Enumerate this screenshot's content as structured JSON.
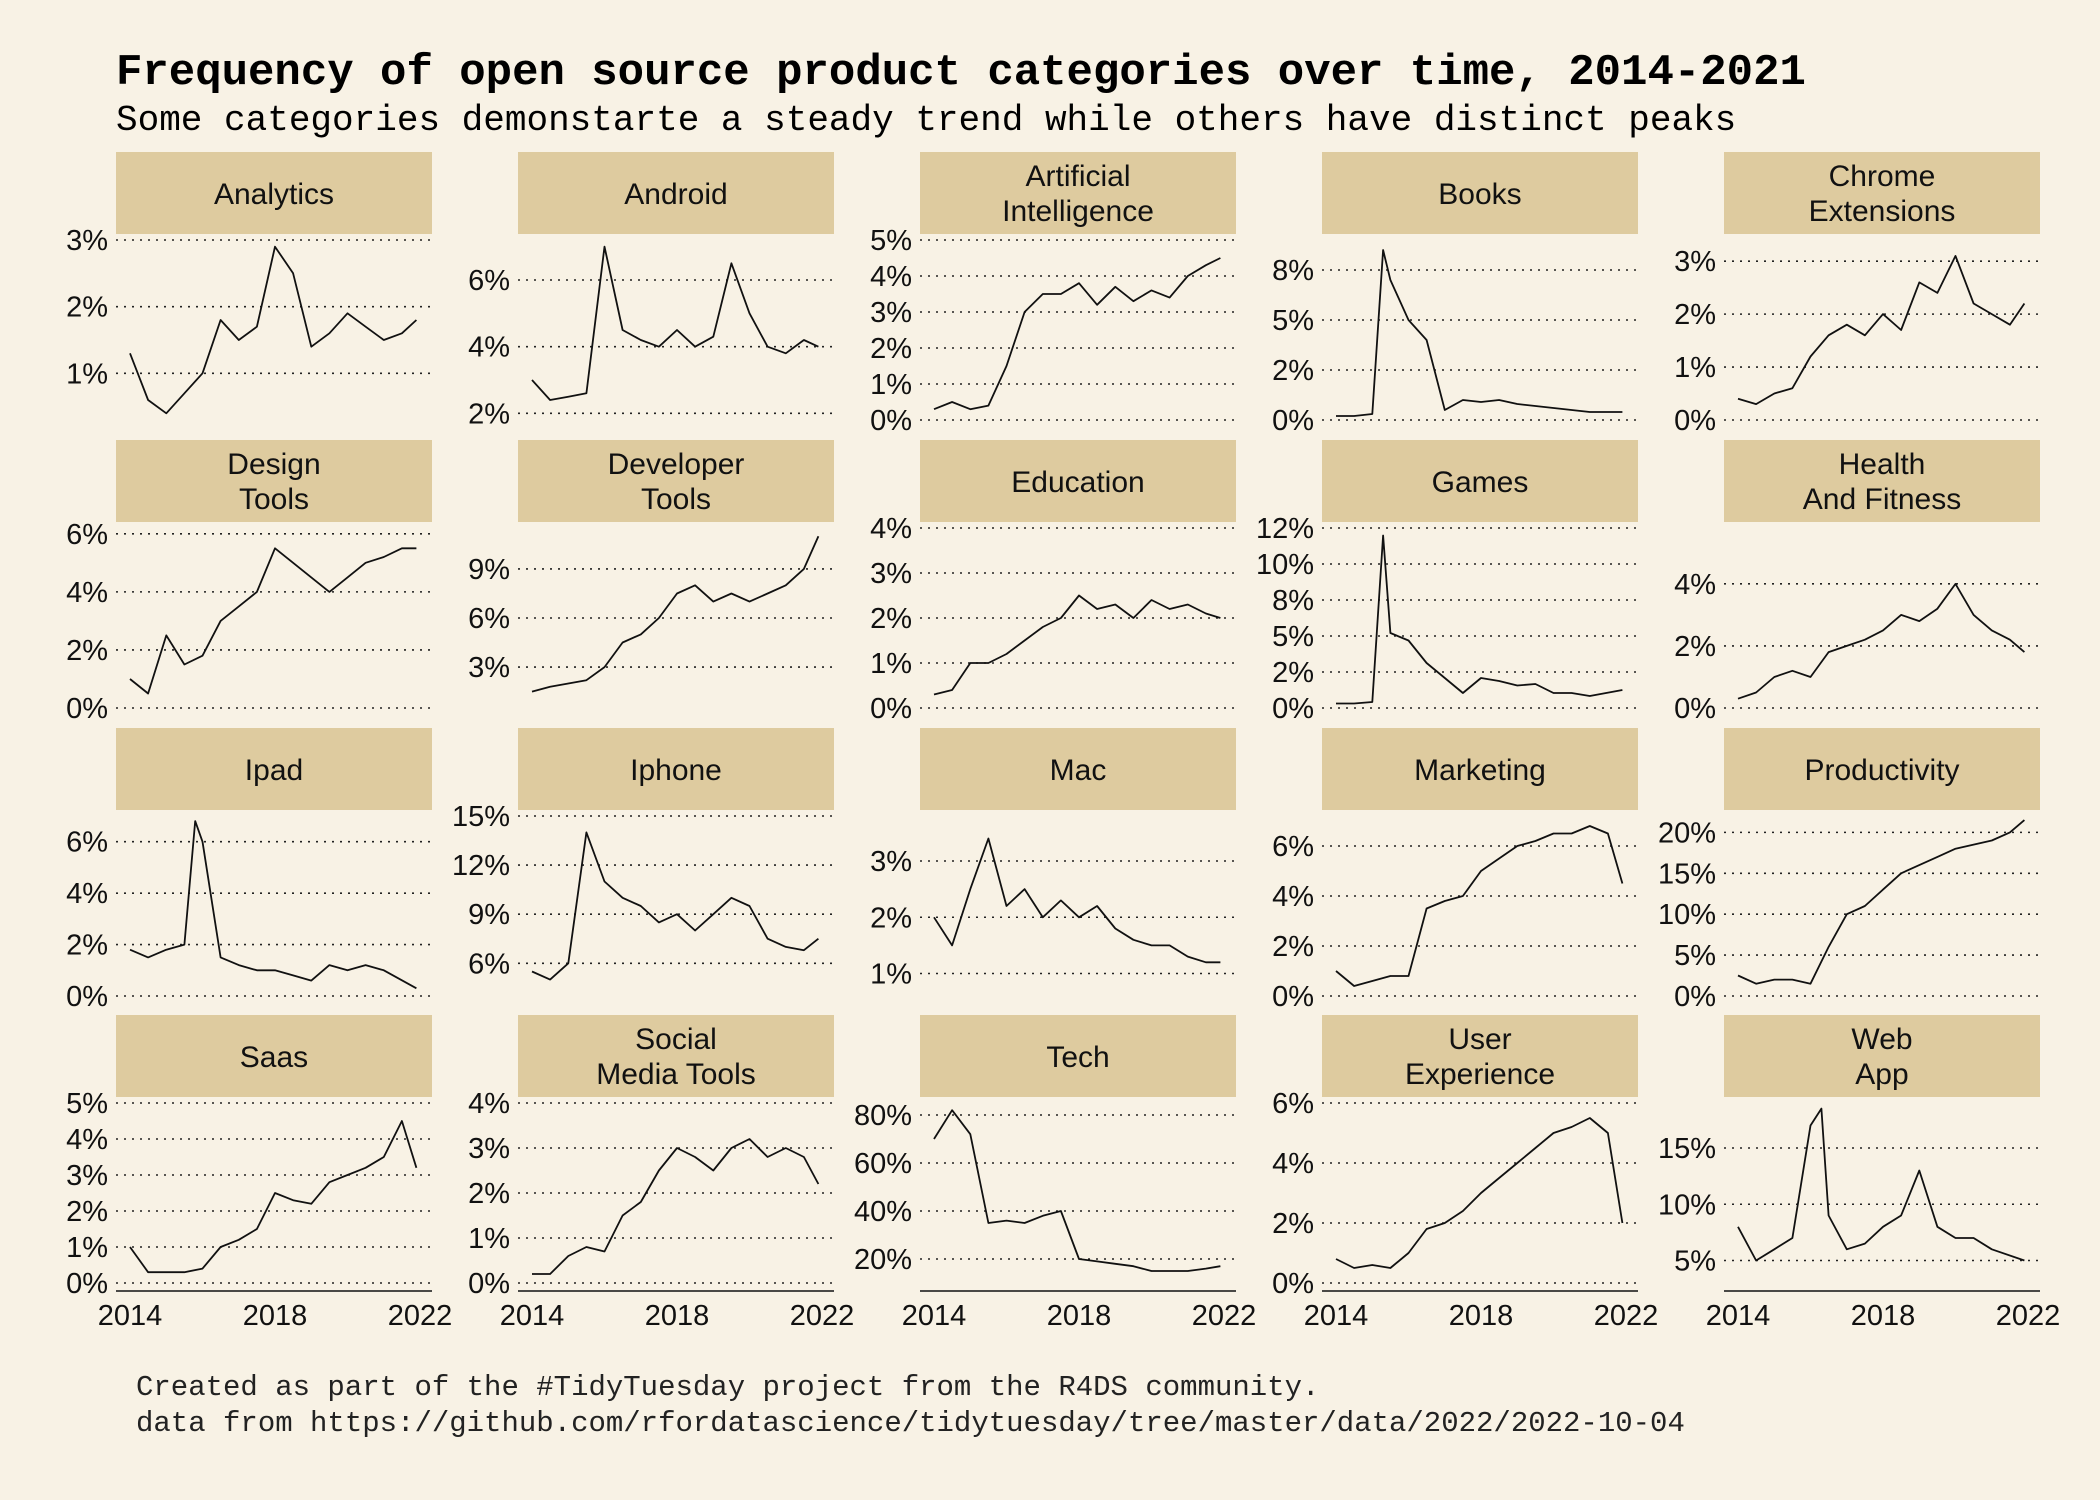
{
  "title": "Frequency of open source product categories over time, 2014-2021",
  "subtitle": "Some categories demonstarte a steady trend while others have distinct peaks",
  "caption_line1": "Created as part of the #TidyTuesday project from the R4DS community.",
  "caption_line2": "data from https://github.com/rfordatascience/tidytuesday/tree/master/data/2022/2022-10-04",
  "chart_data": {
    "type": "line",
    "facets": "wrap 5 columns, free y scales",
    "xlim": [
      2014,
      2022
    ],
    "x_ticks": [
      "2014",
      "2018",
      "2022"
    ],
    "grid": "horizontal dotted",
    "panels": [
      {
        "label": "Analytics",
        "ylim": [
          0.3,
          3.0
        ],
        "y_ticks": [
          "1%",
          "2%",
          "3%"
        ],
        "y_tick_values": [
          1,
          2,
          3
        ],
        "x": [
          2014.0,
          2014.5,
          2015.0,
          2015.5,
          2016.0,
          2016.5,
          2017.0,
          2017.5,
          2018.0,
          2018.5,
          2019.0,
          2019.5,
          2020.0,
          2020.5,
          2021.0,
          2021.5,
          2021.9
        ],
        "y": [
          1.3,
          0.6,
          0.4,
          0.7,
          1.0,
          1.8,
          1.5,
          1.7,
          2.9,
          2.5,
          1.4,
          1.6,
          1.9,
          1.7,
          1.5,
          1.6,
          1.8
        ]
      },
      {
        "label": "Android",
        "ylim": [
          1.8,
          7.2
        ],
        "y_ticks": [
          "2%",
          "4%",
          "6%"
        ],
        "y_tick_values": [
          2,
          4,
          6
        ],
        "x": [
          2014.0,
          2014.5,
          2015.0,
          2015.5,
          2016.0,
          2016.5,
          2017.0,
          2017.5,
          2018.0,
          2018.5,
          2019.0,
          2019.5,
          2020.0,
          2020.5,
          2021.0,
          2021.5,
          2021.9
        ],
        "y": [
          3.0,
          2.4,
          2.5,
          2.6,
          7.0,
          4.5,
          4.2,
          4.0,
          4.5,
          4.0,
          4.3,
          6.5,
          5.0,
          4.0,
          3.8,
          4.2,
          4.0
        ]
      },
      {
        "label": "Artificial\nIntelligence",
        "ylim": [
          0,
          5.0
        ],
        "y_ticks": [
          "0%",
          "1%",
          "2%",
          "3%",
          "4%",
          "5%"
        ],
        "y_tick_values": [
          0,
          1,
          2,
          3,
          4,
          5
        ],
        "x": [
          2014.0,
          2014.5,
          2015.0,
          2015.5,
          2016.0,
          2016.5,
          2017.0,
          2017.5,
          2018.0,
          2018.5,
          2019.0,
          2019.5,
          2020.0,
          2020.5,
          2021.0,
          2021.5,
          2021.9
        ],
        "y": [
          0.3,
          0.5,
          0.3,
          0.4,
          1.5,
          3.0,
          3.5,
          3.5,
          3.8,
          3.2,
          3.7,
          3.3,
          3.6,
          3.4,
          4.0,
          4.3,
          4.5
        ]
      },
      {
        "label": "Books",
        "ylim": [
          0,
          9.0
        ],
        "y_ticks": [
          "0%",
          "2%",
          "5%",
          "8%"
        ],
        "y_tick_values": [
          0,
          2.5,
          5,
          7.5
        ],
        "x": [
          2014.0,
          2014.5,
          2015.0,
          2015.3,
          2015.5,
          2016.0,
          2016.5,
          2017.0,
          2017.5,
          2018.0,
          2018.5,
          2019.0,
          2019.5,
          2020.0,
          2020.5,
          2021.0,
          2021.9
        ],
        "y": [
          0.2,
          0.2,
          0.3,
          8.5,
          7.0,
          5.0,
          4.0,
          0.5,
          1.0,
          0.9,
          1.0,
          0.8,
          0.7,
          0.6,
          0.5,
          0.4,
          0.4
        ]
      },
      {
        "label": "Chrome\nExtensions",
        "ylim": [
          0,
          3.4
        ],
        "y_ticks": [
          "0%",
          "1%",
          "2%",
          "3%"
        ],
        "y_tick_values": [
          0,
          1,
          2,
          3
        ],
        "x": [
          2014.0,
          2014.5,
          2015.0,
          2015.5,
          2016.0,
          2016.5,
          2017.0,
          2017.5,
          2018.0,
          2018.5,
          2019.0,
          2019.5,
          2020.0,
          2020.5,
          2021.0,
          2021.5,
          2021.9
        ],
        "y": [
          0.4,
          0.3,
          0.5,
          0.6,
          1.2,
          1.6,
          1.8,
          1.6,
          2.0,
          1.7,
          2.6,
          2.4,
          3.1,
          2.2,
          2.0,
          1.8,
          2.2
        ]
      },
      {
        "label": "Design\nTools",
        "ylim": [
          0,
          6.2
        ],
        "y_ticks": [
          "0%",
          "2%",
          "4%",
          "6%"
        ],
        "y_tick_values": [
          0,
          2,
          4,
          6
        ],
        "x": [
          2014.0,
          2014.5,
          2015.0,
          2015.5,
          2016.0,
          2016.5,
          2017.0,
          2017.5,
          2018.0,
          2018.5,
          2019.0,
          2019.5,
          2020.0,
          2020.5,
          2021.0,
          2021.5,
          2021.9
        ],
        "y": [
          1.0,
          0.5,
          2.5,
          1.5,
          1.8,
          3.0,
          3.5,
          4.0,
          5.5,
          5.0,
          4.5,
          4.0,
          4.5,
          5.0,
          5.2,
          5.5,
          5.5
        ]
      },
      {
        "label": "Developer\nTools",
        "ylim": [
          0.5,
          11.5
        ],
        "y_ticks": [
          "3%",
          "6%",
          "9%"
        ],
        "y_tick_values": [
          3,
          6,
          9
        ],
        "x": [
          2014.0,
          2014.5,
          2015.0,
          2015.5,
          2016.0,
          2016.5,
          2017.0,
          2017.5,
          2018.0,
          2018.5,
          2019.0,
          2019.5,
          2020.0,
          2020.5,
          2021.0,
          2021.5,
          2021.9
        ],
        "y": [
          1.5,
          1.8,
          2.0,
          2.2,
          3.0,
          4.5,
          5.0,
          6.0,
          7.5,
          8.0,
          7.0,
          7.5,
          7.0,
          7.5,
          8.0,
          9.0,
          11.0
        ]
      },
      {
        "label": "Education",
        "ylim": [
          0,
          4.0
        ],
        "y_ticks": [
          "0%",
          "1%",
          "2%",
          "3%",
          "4%"
        ],
        "y_tick_values": [
          0,
          1,
          2,
          3,
          4
        ],
        "x": [
          2014.0,
          2014.5,
          2015.0,
          2015.5,
          2016.0,
          2016.5,
          2017.0,
          2017.5,
          2018.0,
          2018.5,
          2019.0,
          2019.5,
          2020.0,
          2020.5,
          2021.0,
          2021.5,
          2021.9
        ],
        "y": [
          0.3,
          0.4,
          1.0,
          1.0,
          1.2,
          1.5,
          1.8,
          2.0,
          2.5,
          2.2,
          2.3,
          2.0,
          2.4,
          2.2,
          2.3,
          2.1,
          2.0
        ]
      },
      {
        "label": "Games",
        "ylim": [
          0,
          12.0
        ],
        "y_ticks": [
          "0%",
          "2%",
          "5%",
          "8%",
          "10%",
          "12%"
        ],
        "y_tick_values": [
          0,
          2.4,
          4.8,
          7.2,
          9.6,
          12
        ],
        "x": [
          2014.0,
          2014.5,
          2015.0,
          2015.3,
          2015.5,
          2016.0,
          2016.5,
          2017.0,
          2017.5,
          2018.0,
          2018.5,
          2019.0,
          2019.5,
          2020.0,
          2020.5,
          2021.0,
          2021.9
        ],
        "y": [
          0.3,
          0.3,
          0.4,
          11.5,
          5.0,
          4.5,
          3.0,
          2.0,
          1.0,
          2.0,
          1.8,
          1.5,
          1.6,
          1.0,
          1.0,
          0.8,
          1.2
        ]
      },
      {
        "label": "Health\nAnd Fitness",
        "ylim": [
          0,
          5.8
        ],
        "y_ticks": [
          "0%",
          "2%",
          "4%"
        ],
        "y_tick_values": [
          0,
          2,
          4
        ],
        "x": [
          2014.0,
          2014.5,
          2015.0,
          2015.5,
          2016.0,
          2016.5,
          2017.0,
          2017.5,
          2018.0,
          2018.5,
          2019.0,
          2019.5,
          2020.0,
          2020.5,
          2021.0,
          2021.5,
          2021.9
        ],
        "y": [
          0.3,
          0.5,
          1.0,
          1.2,
          1.0,
          1.8,
          2.0,
          2.2,
          2.5,
          3.0,
          2.8,
          3.2,
          4.0,
          3.0,
          2.5,
          2.2,
          1.8
        ]
      },
      {
        "label": "Ipad",
        "ylim": [
          0,
          7.0
        ],
        "y_ticks": [
          "0%",
          "2%",
          "4%",
          "6%"
        ],
        "y_tick_values": [
          0,
          2,
          4,
          6
        ],
        "x": [
          2014.0,
          2014.5,
          2015.0,
          2015.5,
          2015.8,
          2016.0,
          2016.5,
          2017.0,
          2017.5,
          2018.0,
          2018.5,
          2019.0,
          2019.5,
          2020.0,
          2020.5,
          2021.0,
          2021.9
        ],
        "y": [
          1.8,
          1.5,
          1.8,
          2.0,
          6.8,
          6.0,
          1.5,
          1.2,
          1.0,
          1.0,
          0.8,
          0.6,
          1.2,
          1.0,
          1.2,
          1.0,
          0.3
        ]
      },
      {
        "label": "Iphone",
        "ylim": [
          4.0,
          15.0
        ],
        "y_ticks": [
          "6%",
          "9%",
          "12%",
          "15%"
        ],
        "y_tick_values": [
          6,
          9,
          12,
          15
        ],
        "x": [
          2014.0,
          2014.5,
          2015.0,
          2015.5,
          2016.0,
          2016.5,
          2017.0,
          2017.5,
          2018.0,
          2018.5,
          2019.0,
          2019.5,
          2020.0,
          2020.5,
          2021.0,
          2021.5,
          2021.9
        ],
        "y": [
          5.5,
          5.0,
          6.0,
          14.0,
          11.0,
          10.0,
          9.5,
          8.5,
          9.0,
          8.0,
          9.0,
          10.0,
          9.5,
          7.5,
          7.0,
          6.8,
          7.5
        ]
      },
      {
        "label": "Mac",
        "ylim": [
          0.6,
          3.8
        ],
        "y_ticks": [
          "1%",
          "2%",
          "3%"
        ],
        "y_tick_values": [
          1,
          2,
          3
        ],
        "x": [
          2014.0,
          2014.5,
          2015.0,
          2015.5,
          2016.0,
          2016.5,
          2017.0,
          2017.5,
          2018.0,
          2018.5,
          2019.0,
          2019.5,
          2020.0,
          2020.5,
          2021.0,
          2021.5,
          2021.9
        ],
        "y": [
          2.0,
          1.5,
          2.5,
          3.4,
          2.2,
          2.5,
          2.0,
          2.3,
          2.0,
          2.2,
          1.8,
          1.6,
          1.5,
          1.5,
          1.3,
          1.2,
          1.2
        ]
      },
      {
        "label": "Marketing",
        "ylim": [
          0,
          7.2
        ],
        "y_ticks": [
          "0%",
          "2%",
          "4%",
          "6%"
        ],
        "y_tick_values": [
          0,
          2,
          4,
          6
        ],
        "x": [
          2014.0,
          2014.5,
          2015.0,
          2015.5,
          2016.0,
          2016.5,
          2017.0,
          2017.5,
          2018.0,
          2018.5,
          2019.0,
          2019.5,
          2020.0,
          2020.5,
          2021.0,
          2021.5,
          2021.9
        ],
        "y": [
          1.0,
          0.4,
          0.6,
          0.8,
          0.8,
          3.5,
          3.8,
          4.0,
          5.0,
          5.5,
          6.0,
          6.2,
          6.5,
          6.5,
          6.8,
          6.5,
          4.5
        ]
      },
      {
        "label": "Productivity",
        "ylim": [
          0,
          22.0
        ],
        "y_ticks": [
          "0%",
          "5%",
          "10%",
          "15%",
          "20%"
        ],
        "y_tick_values": [
          0,
          5,
          10,
          15,
          20
        ],
        "x": [
          2014.0,
          2014.5,
          2015.0,
          2015.5,
          2016.0,
          2016.5,
          2017.0,
          2017.5,
          2018.0,
          2018.5,
          2019.0,
          2019.5,
          2020.0,
          2020.5,
          2021.0,
          2021.5,
          2021.9
        ],
        "y": [
          2.5,
          1.5,
          2.0,
          2.0,
          1.5,
          6.0,
          10.0,
          11.0,
          13.0,
          15.0,
          16.0,
          17.0,
          18.0,
          18.5,
          19.0,
          20.0,
          21.5
        ]
      },
      {
        "label": "Saas",
        "ylim": [
          0,
          5.0
        ],
        "y_ticks": [
          "0%",
          "1%",
          "2%",
          "3%",
          "4%",
          "5%"
        ],
        "y_tick_values": [
          0,
          1,
          2,
          3,
          4,
          5
        ],
        "x": [
          2014.0,
          2014.5,
          2015.0,
          2015.5,
          2016.0,
          2016.5,
          2017.0,
          2017.5,
          2018.0,
          2018.5,
          2019.0,
          2019.5,
          2020.0,
          2020.5,
          2021.0,
          2021.5,
          2021.9
        ],
        "y": [
          1.0,
          0.3,
          0.3,
          0.3,
          0.4,
          1.0,
          1.2,
          1.5,
          2.5,
          2.3,
          2.2,
          2.8,
          3.0,
          3.2,
          3.5,
          4.5,
          3.2
        ]
      },
      {
        "label": "Social\nMedia Tools",
        "ylim": [
          0,
          4.0
        ],
        "y_ticks": [
          "0%",
          "1%",
          "2%",
          "3%",
          "4%"
        ],
        "y_tick_values": [
          0,
          1,
          2,
          3,
          4
        ],
        "x": [
          2014.0,
          2014.5,
          2015.0,
          2015.5,
          2016.0,
          2016.5,
          2017.0,
          2017.5,
          2018.0,
          2018.5,
          2019.0,
          2019.5,
          2020.0,
          2020.5,
          2021.0,
          2021.5,
          2021.9
        ],
        "y": [
          0.2,
          0.2,
          0.6,
          0.8,
          0.7,
          1.5,
          1.8,
          2.5,
          3.0,
          2.8,
          2.5,
          3.0,
          3.2,
          2.8,
          3.0,
          2.8,
          2.2
        ]
      },
      {
        "label": "Tech",
        "ylim": [
          10.0,
          85.0
        ],
        "y_ticks": [
          "20%",
          "40%",
          "60%",
          "80%"
        ],
        "y_tick_values": [
          20,
          40,
          60,
          80
        ],
        "x": [
          2014.0,
          2014.5,
          2015.0,
          2015.5,
          2016.0,
          2016.5,
          2017.0,
          2017.5,
          2018.0,
          2018.5,
          2019.0,
          2019.5,
          2020.0,
          2020.5,
          2021.0,
          2021.5,
          2021.9
        ],
        "y": [
          70.0,
          82.0,
          72.0,
          35.0,
          36.0,
          35.0,
          38.0,
          40.0,
          20.0,
          19.0,
          18.0,
          17.0,
          15.0,
          15.0,
          15.0,
          16.0,
          17.0
        ]
      },
      {
        "label": "User\nExperience",
        "ylim": [
          0,
          6.0
        ],
        "y_ticks": [
          "0%",
          "2%",
          "4%",
          "6%"
        ],
        "y_tick_values": [
          0,
          2,
          4,
          6
        ],
        "x": [
          2014.0,
          2014.5,
          2015.0,
          2015.5,
          2016.0,
          2016.5,
          2017.0,
          2017.5,
          2018.0,
          2018.5,
          2019.0,
          2019.5,
          2020.0,
          2020.5,
          2021.0,
          2021.5,
          2021.9
        ],
        "y": [
          0.8,
          0.5,
          0.6,
          0.5,
          1.0,
          1.8,
          2.0,
          2.4,
          3.0,
          3.5,
          4.0,
          4.5,
          5.0,
          5.2,
          5.5,
          5.0,
          2.0
        ]
      },
      {
        "label": "Web\nApp",
        "ylim": [
          3.0,
          19.0
        ],
        "y_ticks": [
          "5%",
          "10%",
          "15%"
        ],
        "y_tick_values": [
          5,
          10,
          15
        ],
        "x": [
          2014.0,
          2014.5,
          2015.0,
          2015.5,
          2016.0,
          2016.3,
          2016.5,
          2017.0,
          2017.5,
          2018.0,
          2018.5,
          2019.0,
          2019.5,
          2020.0,
          2020.5,
          2021.0,
          2021.9
        ],
        "y": [
          8.0,
          5.0,
          6.0,
          7.0,
          17.0,
          18.5,
          9.0,
          6.0,
          6.5,
          8.0,
          9.0,
          13.0,
          8.0,
          7.0,
          7.0,
          6.0,
          5.0
        ]
      }
    ]
  }
}
